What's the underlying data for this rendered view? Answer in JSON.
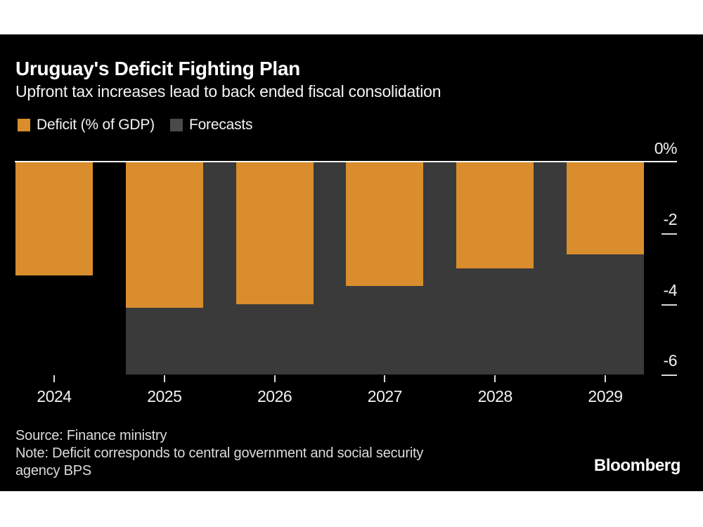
{
  "header": {
    "title": "Uruguay's Deficit Fighting Plan",
    "subtitle": "Upfront tax increases lead to back ended fiscal consolidation"
  },
  "legend": {
    "deficit_label": "Deficit (% of GDP)",
    "deficit_color": "#D98D2C",
    "forecasts_label": "Forecasts",
    "forecasts_color": "#4A4A4A"
  },
  "chart_data": {
    "type": "bar",
    "title": "Uruguay's Deficit Fighting Plan",
    "subtitle": "Upfront tax increases lead to back ended fiscal consolidation",
    "categories": [
      "2024",
      "2025",
      "2026",
      "2027",
      "2028",
      "2029"
    ],
    "series": [
      {
        "name": "Deficit (% of GDP)",
        "values": [
          -3.2,
          -4.1,
          -4.0,
          -3.5,
          -3.0,
          -2.6
        ]
      }
    ],
    "forecast_categories": [
      "2025",
      "2026",
      "2027",
      "2028",
      "2029"
    ],
    "xlabel": "",
    "ylabel": "",
    "ylim": [
      -6,
      0
    ],
    "yticks": [
      {
        "value": 0,
        "label": "0%"
      },
      {
        "value": -2,
        "label": "-2"
      },
      {
        "value": -4,
        "label": "-4"
      },
      {
        "value": -6,
        "label": "-6"
      }
    ],
    "grid": false,
    "legend_position": "top-left",
    "bar_color": "#D98D2C",
    "forecast_band_color": "#3A3A3A",
    "axis_line_color": "#FFFFFF",
    "tick_color": "#D9D9D9",
    "background_color": "#000000"
  },
  "footer": {
    "source": "Source: Finance ministry",
    "note_line1": "Note: Deficit corresponds to central government and social security",
    "note_line2": "agency BPS",
    "logo": "Bloomberg"
  }
}
